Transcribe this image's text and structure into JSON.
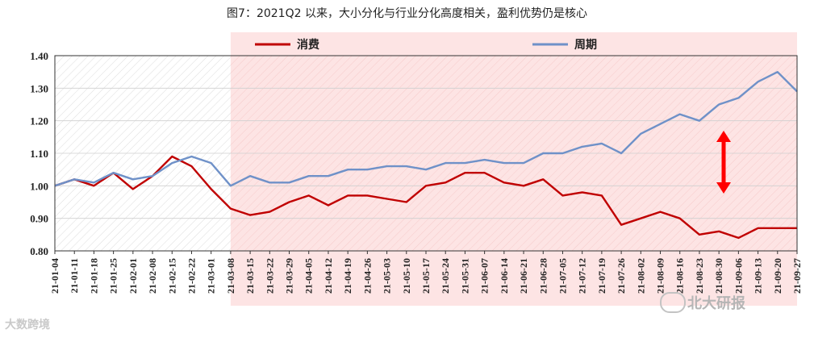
{
  "title": "图7：2021Q2 以来，大小分化与行业分化高度相关，盈利优势仍是核心",
  "chart_data": {
    "type": "line",
    "x": [
      "21-01-04",
      "21-01-11",
      "21-01-18",
      "21-01-25",
      "21-02-01",
      "21-02-08",
      "21-02-15",
      "21-02-22",
      "21-03-01",
      "21-03-08",
      "21-03-15",
      "21-03-22",
      "21-03-29",
      "21-04-05",
      "21-04-12",
      "21-04-19",
      "21-04-26",
      "21-05-03",
      "21-05-10",
      "21-05-17",
      "21-05-24",
      "21-05-31",
      "21-06-07",
      "21-06-14",
      "21-06-21",
      "21-06-28",
      "21-07-05",
      "21-07-12",
      "21-07-19",
      "21-07-26",
      "21-08-02",
      "21-08-09",
      "21-08-16",
      "21-08-23",
      "21-08-30",
      "21-09-06",
      "21-09-13",
      "21-09-20",
      "21-09-27"
    ],
    "xtick_labels": [
      "21-01-04",
      "21-01-11",
      "21-01-18",
      "21-01-25",
      "21-02-01",
      "21-02-08",
      "21-02-15",
      "21-02-22",
      "21-03-01",
      "21-03-08",
      "21-03-15",
      "21-03-22",
      "21-03-29",
      "21-04-05",
      "21-04-12",
      "21-04-19",
      "21-04-26",
      "21-05-03",
      "21-05-10",
      "21-05-17",
      "21-05-24",
      "21-05-31",
      "21-06-07",
      "21-06-14",
      "21-06-21",
      "21-06-28",
      "21-07-05",
      "21-07-12",
      "21-07-19",
      "21-07-26",
      "21-08-02",
      "21-08-09",
      "21-08-16",
      "21-08-23",
      "21-08-30",
      "21-09-06",
      "21-09-13",
      "21-09-20",
      "21-09-27"
    ],
    "series": [
      {
        "name": "消费",
        "color": "#c00000",
        "values": [
          1.0,
          1.02,
          1.0,
          1.04,
          0.99,
          1.03,
          1.09,
          1.06,
          0.99,
          0.93,
          0.91,
          0.92,
          0.95,
          0.97,
          0.94,
          0.97,
          0.97,
          0.96,
          0.95,
          1.0,
          1.01,
          1.04,
          1.04,
          1.01,
          1.0,
          1.02,
          0.97,
          0.98,
          0.97,
          0.88,
          0.9,
          0.92,
          0.9,
          0.85,
          0.86,
          0.84,
          0.87,
          0.87,
          0.87
        ]
      },
      {
        "name": "周期",
        "color": "#6f91c8",
        "values": [
          1.0,
          1.02,
          1.01,
          1.04,
          1.02,
          1.03,
          1.07,
          1.09,
          1.07,
          1.0,
          1.03,
          1.01,
          1.01,
          1.03,
          1.03,
          1.05,
          1.05,
          1.06,
          1.06,
          1.05,
          1.07,
          1.07,
          1.08,
          1.07,
          1.07,
          1.1,
          1.1,
          1.12,
          1.13,
          1.1,
          1.16,
          1.19,
          1.22,
          1.2,
          1.25,
          1.27,
          1.32,
          1.35,
          1.29
        ]
      }
    ],
    "ylim": [
      0.8,
      1.4
    ],
    "yticks": [
      "0.80",
      "0.90",
      "1.00",
      "1.10",
      "1.20",
      "1.30",
      "1.40"
    ],
    "legend_position": "top",
    "highlight_start": "21-03-08",
    "highlight_color": "#fde4e4",
    "annotation": "red double-headed arrow indicating divergence between the two series"
  },
  "watermark_left": "大数跨境",
  "watermark_right": "北大研报"
}
